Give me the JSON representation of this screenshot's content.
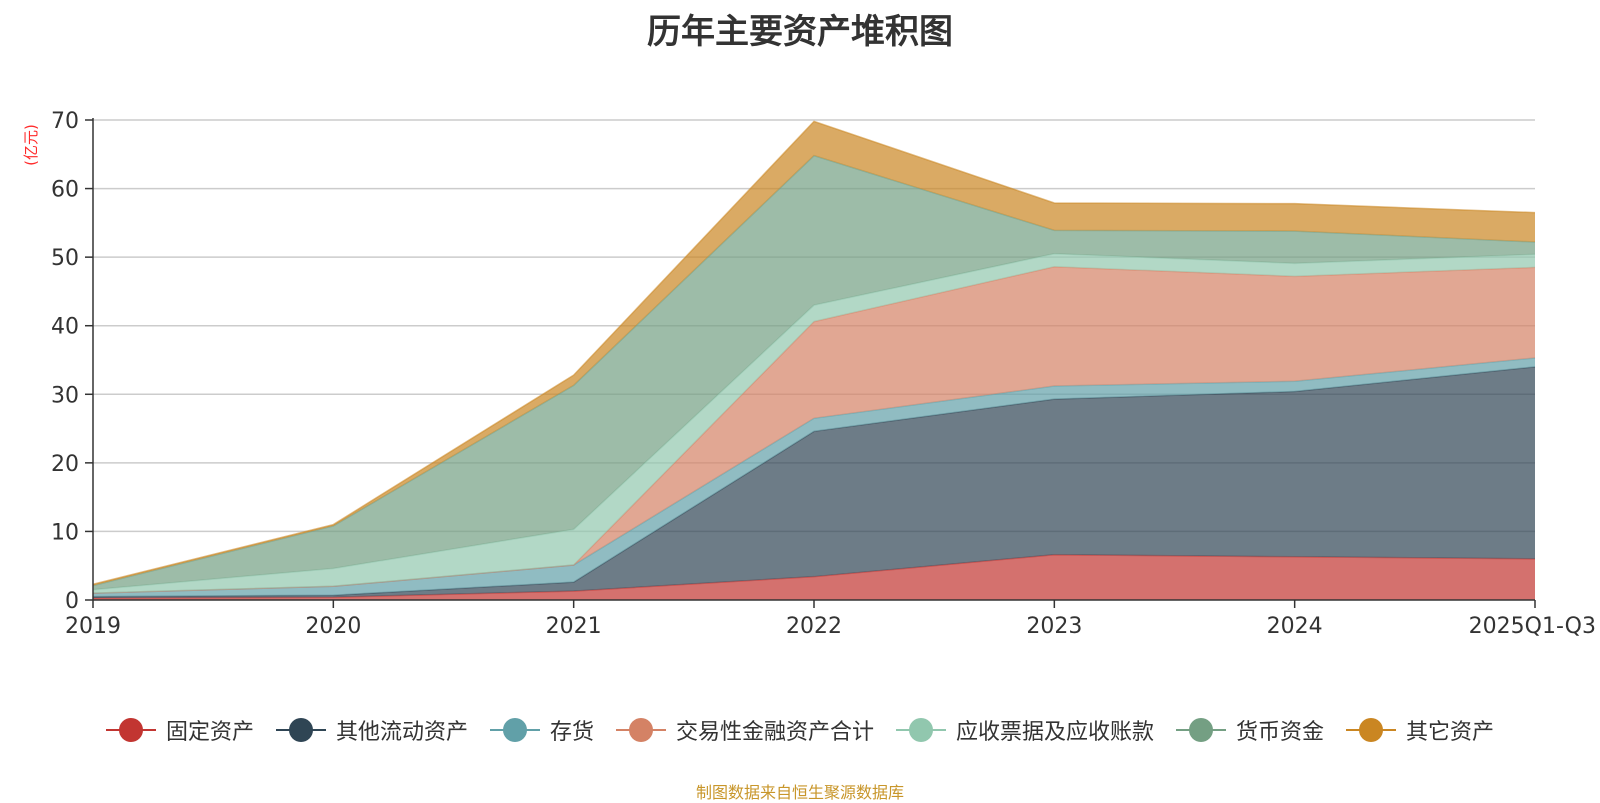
{
  "chart_data": {
    "type": "area",
    "title": "历年主要资产堆积图",
    "ylabel": "(亿元)",
    "xlabel": "",
    "ylim": [
      0,
      70
    ],
    "yticks": [
      0,
      10,
      20,
      30,
      40,
      50,
      60,
      70
    ],
    "categories": [
      "2019",
      "2020",
      "2021",
      "2022",
      "2023",
      "2024",
      "2025Q1-Q3"
    ],
    "stacked": true,
    "grid": true,
    "legend_position": "bottom",
    "series": [
      {
        "name": "固定资产",
        "color": "#c23531",
        "values": [
          0.3,
          0.4,
          1.3,
          3.4,
          6.6,
          6.3,
          6.0
        ]
      },
      {
        "name": "其他流动资产",
        "color": "#2f4554",
        "values": [
          0.2,
          0.3,
          1.3,
          21.2,
          22.7,
          24.1,
          28.0
        ]
      },
      {
        "name": "存货",
        "color": "#61a0a8",
        "values": [
          0.5,
          1.3,
          2.5,
          1.9,
          1.9,
          1.5,
          1.3
        ]
      },
      {
        "name": "交易性金融资产合计",
        "color": "#d48265",
        "values": [
          0.0,
          0.0,
          0.0,
          14.1,
          17.4,
          15.3,
          13.2
        ]
      },
      {
        "name": "应收票据及应收账款",
        "color": "#91c7ae",
        "values": [
          0.5,
          2.6,
          5.2,
          2.4,
          1.9,
          1.9,
          1.9
        ]
      },
      {
        "name": "货币资金",
        "color": "#749f83",
        "values": [
          0.6,
          6.2,
          21.0,
          21.8,
          3.4,
          4.7,
          1.8
        ]
      },
      {
        "name": "其它资产",
        "color": "#ca8622",
        "values": [
          0.2,
          0.2,
          1.5,
          5.0,
          4.0,
          4.0,
          4.3
        ]
      }
    ]
  },
  "source_note": "制图数据来自恒生聚源数据库"
}
